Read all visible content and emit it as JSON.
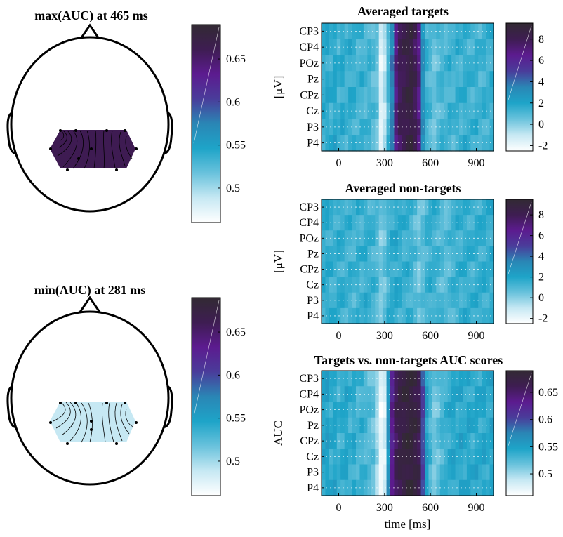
{
  "colormap": [
    "#ffffff",
    "#c6e8f3",
    "#69c2dc",
    "#1ea4c8",
    "#2a86b5",
    "#4a3c9a",
    "#5c1b8f",
    "#3e1d52",
    "#322a33"
  ],
  "channels": [
    "CP3",
    "CP4",
    "POz",
    "Pz",
    "CPz",
    "Cz",
    "P3",
    "P4"
  ],
  "times_ms": [
    -100,
    -75,
    -50,
    -25,
    0,
    25,
    50,
    75,
    100,
    125,
    150,
    175,
    200,
    225,
    250,
    275,
    300,
    325,
    350,
    375,
    400,
    425,
    450,
    475,
    500,
    525,
    550,
    575,
    600,
    625,
    650,
    675,
    700,
    725,
    750,
    775,
    800,
    825,
    850,
    875,
    900,
    925,
    950,
    975,
    1000
  ],
  "topoplots": [
    {
      "title": "max(AUC) at 465 ms",
      "colorbar_ticks": [
        "0.5",
        "0.55",
        "0.6",
        "0.65"
      ],
      "fill_color": "#3e1b52"
    },
    {
      "title": "min(AUC) at 281 ms",
      "colorbar_ticks": [
        "0.5",
        "0.55",
        "0.6",
        "0.65"
      ],
      "fill_color": "#c6e8f3"
    }
  ],
  "chart_data": [
    {
      "type": "heatmap",
      "title": "Averaged targets",
      "ylabel": "[μV]",
      "xlabel": "",
      "x_ticks": [
        "0",
        "300",
        "600",
        "900"
      ],
      "y_categories": [
        "CP3",
        "CP4",
        "POz",
        "Pz",
        "CPz",
        "Cz",
        "P3",
        "P4"
      ],
      "colorbar_ticks": [
        "-2",
        "0",
        "2",
        "4",
        "6",
        "8"
      ],
      "clim": [
        -2.5,
        9.5
      ],
      "profile": [
        1.6,
        1.8,
        1.5,
        1.9,
        1.4,
        1.7,
        1.3,
        1.6,
        1.5,
        1.2,
        1.4,
        1.1,
        1.3,
        0.9,
        0.6,
        -1.6,
        -0.8,
        1.2,
        3.5,
        6.8,
        7.9,
        8.2,
        8.6,
        8.8,
        8.0,
        6.8,
        3.0,
        1.4,
        1.0,
        0.5,
        0.9,
        1.2,
        1.1,
        1.4,
        1.2,
        1.5,
        1.3,
        1.6,
        1.4,
        1.3,
        1.5,
        1.2,
        1.4,
        1.3,
        1.5
      ]
    },
    {
      "type": "heatmap",
      "title": "Averaged non-targets",
      "ylabel": "[μV]",
      "xlabel": "",
      "x_ticks": [
        "0",
        "300",
        "600",
        "900"
      ],
      "y_categories": [
        "CP3",
        "CP4",
        "POz",
        "Pz",
        "CPz",
        "Cz",
        "P3",
        "P4"
      ],
      "colorbar_ticks": [
        "-2",
        "0",
        "2",
        "4",
        "6",
        "8"
      ],
      "clim": [
        -2.5,
        9.5
      ],
      "profile": [
        1.6,
        1.7,
        1.5,
        1.4,
        1.6,
        1.5,
        1.3,
        1.4,
        1.2,
        1.5,
        1.3,
        1.6,
        1.4,
        1.3,
        1.0,
        0.3,
        0.6,
        1.3,
        1.6,
        1.8,
        1.6,
        1.4,
        1.5,
        1.3,
        0.9,
        0.4,
        0.8,
        1.3,
        1.5,
        1.4,
        1.2,
        1.0,
        0.8,
        1.0,
        1.3,
        1.5,
        1.4,
        1.6,
        1.5,
        1.4,
        1.6,
        1.5,
        1.6,
        1.5,
        1.6
      ]
    },
    {
      "type": "heatmap",
      "title": "Targets vs. non-targets AUC scores",
      "ylabel": "AUC",
      "xlabel": "time [ms]",
      "x_ticks": [
        "0",
        "300",
        "600",
        "900"
      ],
      "y_categories": [
        "CP3",
        "CP4",
        "POz",
        "Pz",
        "CPz",
        "Cz",
        "P3",
        "P4"
      ],
      "colorbar_ticks": [
        "0.5",
        "0.55",
        "0.6",
        "0.65"
      ],
      "clim": [
        0.46,
        0.69
      ],
      "profile": [
        0.545,
        0.55,
        0.54,
        0.545,
        0.535,
        0.54,
        0.545,
        0.535,
        0.54,
        0.53,
        0.535,
        0.53,
        0.525,
        0.52,
        0.5,
        0.47,
        0.48,
        0.56,
        0.63,
        0.66,
        0.67,
        0.675,
        0.68,
        0.68,
        0.675,
        0.665,
        0.6,
        0.55,
        0.53,
        0.515,
        0.52,
        0.53,
        0.535,
        0.54,
        0.545,
        0.54,
        0.545,
        0.54,
        0.545,
        0.54,
        0.545,
        0.54,
        0.545,
        0.54,
        0.545
      ]
    }
  ]
}
